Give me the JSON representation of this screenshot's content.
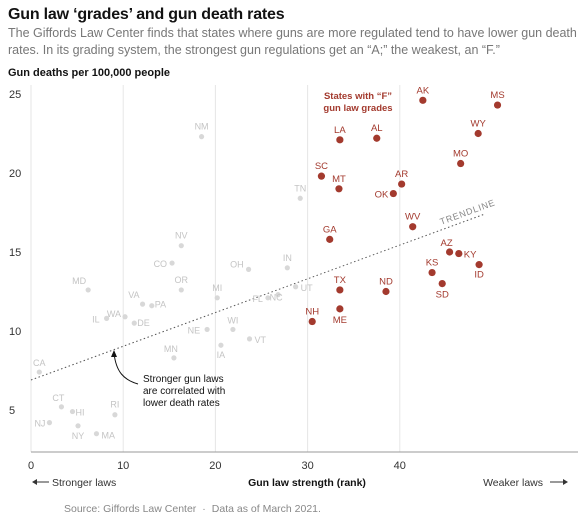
{
  "title": "Gun law ‘grades’ and gun death rates",
  "subtitle": "The Giffords Law Center finds that states where guns are more regulated tend to have lower gun death rates. In its grading system, the strongest gun regulations get an “A;” the weakest, an “F.”",
  "source": "Source: Giffords Law Center",
  "data_note": "Data as of March 2021.",
  "chart_data": {
    "type": "scatter",
    "xlabel": "Gun law strength (rank)",
    "ylabel": "Gun deaths per 100,000 people",
    "xlim": [
      0,
      50
    ],
    "ylim": [
      3,
      25.5
    ],
    "xticks": [
      0,
      10,
      20,
      30,
      40
    ],
    "yticks": [
      5,
      10,
      15,
      20,
      25
    ],
    "grid": "x-only",
    "x_left_annotation": "Stronger laws",
    "x_right_annotation": "Weaker laws",
    "trendline": {
      "label": "TRENDLINE",
      "from": [
        0,
        6.9
      ],
      "to": [
        49.2,
        17.4
      ]
    },
    "annotations": [
      {
        "text": [
          "States with “F”",
          "gun law grades"
        ],
        "color": "#a33a2e"
      },
      {
        "text": [
          "Stronger gun laws",
          "are correlated with",
          "lower death rates"
        ],
        "color": "#121212"
      }
    ],
    "series": [
      {
        "name": "Other states",
        "color": "#d8d8d8",
        "points": [
          {
            "label": "NM",
            "x": 18.5,
            "y": 22.3
          },
          {
            "label": "TN",
            "x": 29.2,
            "y": 18.4
          },
          {
            "label": "NV",
            "x": 16.3,
            "y": 15.4
          },
          {
            "label": "CO",
            "x": 15.3,
            "y": 14.3
          },
          {
            "label": "MD",
            "x": 6.2,
            "y": 12.6
          },
          {
            "label": "OR",
            "x": 16.3,
            "y": 12.6
          },
          {
            "label": "VA",
            "x": 12.1,
            "y": 11.7
          },
          {
            "label": "PA",
            "x": 13.1,
            "y": 11.6
          },
          {
            "label": "WA",
            "x": 10.2,
            "y": 10.9
          },
          {
            "label": "IL",
            "x": 8.2,
            "y": 10.8
          },
          {
            "label": "DE",
            "x": 11.2,
            "y": 10.5
          },
          {
            "label": "MI",
            "x": 20.2,
            "y": 12.1
          },
          {
            "label": "OH",
            "x": 23.6,
            "y": 13.9
          },
          {
            "label": "IN",
            "x": 27.8,
            "y": 14.0
          },
          {
            "label": "FL",
            "x": 25.7,
            "y": 12.1
          },
          {
            "label": "NC",
            "x": 26.8,
            "y": 12.3
          },
          {
            "label": "UT",
            "x": 28.7,
            "y": 12.8
          },
          {
            "label": "WI",
            "x": 21.9,
            "y": 10.1
          },
          {
            "label": "NE",
            "x": 19.1,
            "y": 10.1
          },
          {
            "label": "VT",
            "x": 23.7,
            "y": 9.5
          },
          {
            "label": "MN",
            "x": 15.5,
            "y": 8.3
          },
          {
            "label": "IA",
            "x": 20.6,
            "y": 9.1
          },
          {
            "label": "CA",
            "x": 0.9,
            "y": 7.4
          },
          {
            "label": "CT",
            "x": 3.3,
            "y": 5.2
          },
          {
            "label": "HI",
            "x": 4.5,
            "y": 4.9
          },
          {
            "label": "RI",
            "x": 9.1,
            "y": 4.7
          },
          {
            "label": "NJ",
            "x": 2.0,
            "y": 4.2
          },
          {
            "label": "NY",
            "x": 5.1,
            "y": 4.0
          },
          {
            "label": "MA",
            "x": 7.1,
            "y": 3.5
          }
        ]
      },
      {
        "name": "States with “F” gun law grades",
        "color": "#a33a2e",
        "points": [
          {
            "label": "AK",
            "x": 42.5,
            "y": 24.6
          },
          {
            "label": "MS",
            "x": 50.6,
            "y": 24.3
          },
          {
            "label": "LA",
            "x": 33.5,
            "y": 22.1
          },
          {
            "label": "AL",
            "x": 37.5,
            "y": 22.2
          },
          {
            "label": "WY",
            "x": 48.5,
            "y": 22.5
          },
          {
            "label": "MO",
            "x": 46.6,
            "y": 20.6
          },
          {
            "label": "SC",
            "x": 31.5,
            "y": 19.8
          },
          {
            "label": "MT",
            "x": 33.4,
            "y": 19.0
          },
          {
            "label": "AR",
            "x": 40.2,
            "y": 19.3
          },
          {
            "label": "OK",
            "x": 39.3,
            "y": 18.7
          },
          {
            "label": "WV",
            "x": 41.4,
            "y": 16.6
          },
          {
            "label": "GA",
            "x": 32.4,
            "y": 15.8
          },
          {
            "label": "AZ",
            "x": 45.4,
            "y": 15.0
          },
          {
            "label": "KY",
            "x": 46.4,
            "y": 14.9
          },
          {
            "label": "KS",
            "x": 43.5,
            "y": 13.7
          },
          {
            "label": "ID",
            "x": 48.6,
            "y": 14.2
          },
          {
            "label": "SD",
            "x": 44.6,
            "y": 13.0
          },
          {
            "label": "TX",
            "x": 33.5,
            "y": 12.6
          },
          {
            "label": "ND",
            "x": 38.5,
            "y": 12.5
          },
          {
            "label": "NH",
            "x": 30.5,
            "y": 10.6
          },
          {
            "label": "ME",
            "x": 33.5,
            "y": 11.4
          }
        ]
      }
    ]
  }
}
